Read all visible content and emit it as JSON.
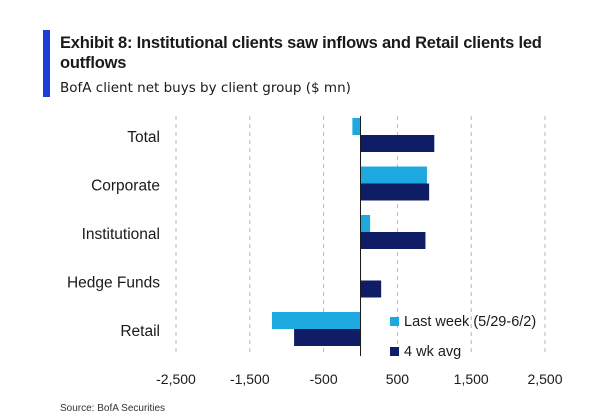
{
  "header": {
    "title": "Exhibit 8: Institutional clients saw inflows and Retail clients led outflows",
    "subtitle": "BofA client net buys by client group ($ mn)",
    "accent_color": "#1b3fd6"
  },
  "footer": {
    "source": "Source: BofA Securities"
  },
  "chart_data": {
    "type": "bar",
    "orientation": "horizontal",
    "categories": [
      "Total",
      "Corporate",
      "Institutional",
      "Hedge Funds",
      "Retail"
    ],
    "series": [
      {
        "name": "Last week (5/29-6/2)",
        "color": "#1ea8e0",
        "values": [
          -110,
          900,
          130,
          0,
          -1200
        ]
      },
      {
        "name": "4 wk avg",
        "color": "#0f1e64",
        "values": [
          1000,
          930,
          880,
          280,
          -900
        ]
      }
    ],
    "xlim": [
      -2500,
      2500
    ],
    "xticks": [
      -2500,
      -1500,
      -500,
      500,
      1500,
      2500
    ],
    "xtick_labels": [
      "-2,500",
      "-1,500",
      "-500",
      "500",
      "1,500",
      "2,500"
    ],
    "grid": "vertical-dashed",
    "legend_position": "bottom-right"
  }
}
